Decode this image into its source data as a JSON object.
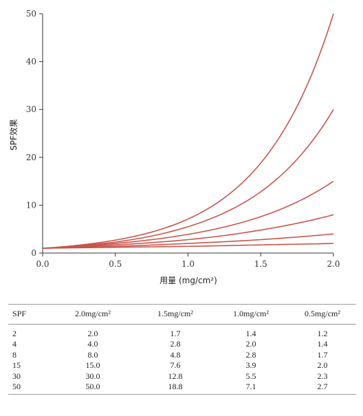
{
  "chart_data": {
    "type": "line",
    "title": "",
    "xlabel": "用量 (mg/cm²)",
    "ylabel": "SPF效果",
    "xlim": [
      0.0,
      2.0
    ],
    "ylim": [
      0,
      50
    ],
    "xticks": [
      "0.0",
      "0.5",
      "1.0",
      "1.5",
      "2.0"
    ],
    "yticks": [
      "0",
      "10",
      "20",
      "30",
      "40",
      "50"
    ],
    "line_color": "#c8554a",
    "grid": false,
    "series": [
      {
        "x": [
          0.0,
          0.5,
          1.0,
          1.5,
          2.0
        ],
        "y": [
          1.0,
          1.2,
          1.4,
          1.7,
          2.0
        ]
      },
      {
        "x": [
          0.0,
          0.5,
          1.0,
          1.5,
          2.0
        ],
        "y": [
          1.0,
          1.4,
          2.0,
          2.8,
          4.0
        ]
      },
      {
        "x": [
          0.0,
          0.5,
          1.0,
          1.5,
          2.0
        ],
        "y": [
          1.0,
          1.7,
          2.8,
          4.8,
          8.0
        ]
      },
      {
        "x": [
          0.0,
          0.5,
          1.0,
          1.5,
          2.0
        ],
        "y": [
          1.0,
          2.0,
          3.9,
          7.6,
          15.0
        ]
      },
      {
        "x": [
          0.0,
          0.5,
          1.0,
          1.5,
          2.0
        ],
        "y": [
          1.0,
          2.3,
          5.5,
          12.8,
          30.0
        ]
      },
      {
        "x": [
          0.0,
          0.5,
          1.0,
          1.5,
          2.0
        ],
        "y": [
          1.0,
          2.7,
          7.1,
          18.8,
          50.0
        ]
      }
    ]
  },
  "table": {
    "headers": [
      "SPF",
      "2.0mg/cm²",
      "1.5mg/cm²",
      "1.0mg/cm²",
      "0.5mg/cm²"
    ],
    "rows": [
      [
        "2",
        "2.0",
        "1.7",
        "1.4",
        "1.2"
      ],
      [
        "4",
        "4.0",
        "2.8",
        "2.0",
        "1.4"
      ],
      [
        "8",
        "8.0",
        "4.8",
        "2.8",
        "1.7"
      ],
      [
        "15",
        "15.0",
        "7.6",
        "3.9",
        "2.0"
      ],
      [
        "30",
        "30.0",
        "12.8",
        "5.5",
        "2.3"
      ],
      [
        "50",
        "50.0",
        "18.8",
        "7.1",
        "2.7"
      ]
    ]
  }
}
